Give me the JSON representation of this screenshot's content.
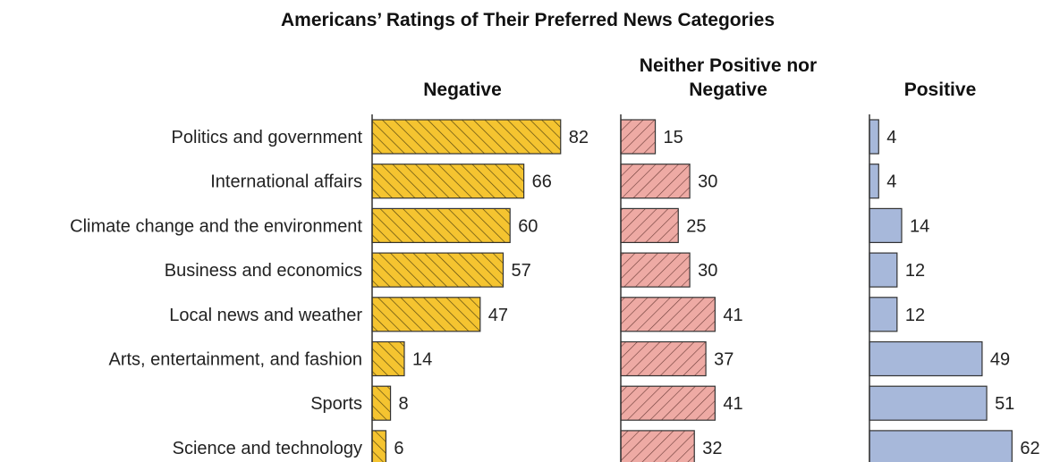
{
  "chart_data": {
    "type": "bar",
    "orientation": "horizontal",
    "title": "Americans’ Ratings of Their Preferred News Categories",
    "categories": [
      "Politics and government",
      "International affairs",
      "Climate change and the environment",
      "Business and economics",
      "Local news and weather",
      "Arts, entertainment, and fashion",
      "Sports",
      "Science and technology"
    ],
    "series": [
      {
        "name": "Negative",
        "title_lines": [
          "Negative"
        ],
        "values": [
          82,
          66,
          60,
          57,
          47,
          14,
          8,
          6
        ],
        "color": "#f5c430",
        "hatch": "back"
      },
      {
        "name": "Neither Positive nor Negative",
        "title_lines": [
          "Neither Positive nor",
          "Negative"
        ],
        "values": [
          15,
          30,
          25,
          30,
          41,
          37,
          41,
          32
        ],
        "color": "#eeaaa4",
        "hatch": "forward"
      },
      {
        "name": "Positive",
        "title_lines": [
          "Positive"
        ],
        "values": [
          4,
          4,
          14,
          12,
          12,
          49,
          51,
          62
        ],
        "color": "#a7b8da",
        "hatch": "none"
      }
    ],
    "xlim": [
      0,
      100
    ],
    "grid": false,
    "legend": "none"
  }
}
